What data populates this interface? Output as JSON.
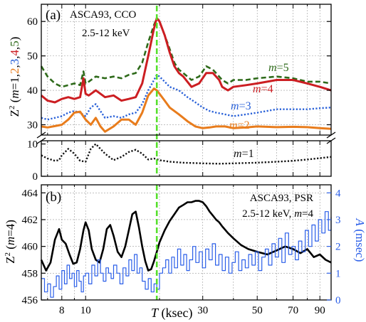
{
  "chart_data": [
    {
      "panel": "a",
      "type": "line",
      "panel_label": "(a)",
      "title": "ASCA93, CCO",
      "subtitle": "2.5-12 keV",
      "x_scale": "log",
      "xlim": [
        6.6,
        100
      ],
      "x_ticks": [
        8,
        10,
        30,
        50,
        70,
        90
      ],
      "y_upper_range": [
        27,
        65
      ],
      "y_upper_ticks": [
        30,
        40,
        50,
        60
      ],
      "y_lower_range": [
        0,
        11
      ],
      "y_lower_ticks": [
        0,
        10
      ],
      "ylabel": {
        "prefix": "Z",
        "sup": "2",
        "open": " (",
        "m_text": "m",
        "equals": "=",
        "parts": [
          "1",
          ",",
          "2",
          ",",
          "3",
          ",",
          "4",
          ",",
          "5"
        ],
        "close": ")"
      },
      "vline_x": 19.5,
      "series": [
        {
          "name": "m=5",
          "color": "#2e6a1a",
          "style": "dashed",
          "x": [
            6.6,
            7.0,
            7.5,
            8.0,
            8.5,
            9.0,
            9.5,
            9.8,
            10.0,
            10.3,
            11.0,
            12.0,
            13.0,
            14.0,
            15.0,
            16.0,
            17.0,
            18.0,
            19.0,
            19.5,
            20.0,
            21.0,
            22.0,
            23.0,
            24.0,
            25.0,
            27.0,
            29.0,
            31.0,
            33.0,
            35.0,
            36.0,
            38.0,
            40.0,
            45.0,
            50.0,
            60.0,
            70.0,
            80.0,
            90.0,
            100.0
          ],
          "y": [
            47,
            44,
            42,
            41,
            41.5,
            42,
            41.5,
            45.5,
            42,
            42.5,
            44,
            43.5,
            44,
            43.5,
            44.5,
            45,
            48,
            54,
            59,
            61,
            60,
            56,
            52,
            48,
            46,
            45,
            43,
            44,
            47,
            46,
            44,
            43,
            42,
            43,
            43,
            43.5,
            44,
            43.5,
            42.5,
            42.5,
            42
          ]
        },
        {
          "name": "m=4",
          "color": "#cc1e22",
          "style": "solid",
          "x": [
            6.6,
            7.0,
            7.5,
            8.0,
            8.5,
            9.0,
            9.5,
            9.8,
            10.0,
            10.3,
            11.0,
            12.0,
            13.0,
            14.0,
            15.0,
            16.0,
            17.0,
            18.0,
            19.0,
            19.5,
            20.0,
            21.0,
            22.0,
            23.0,
            24.0,
            25.0,
            27.0,
            29.0,
            31.0,
            33.0,
            35.0,
            36.0,
            38.0,
            40.0,
            45.0,
            50.0,
            60.0,
            70.0,
            80.0,
            90.0,
            100.0
          ],
          "y": [
            38.5,
            37,
            36.5,
            37.5,
            38,
            37.5,
            38,
            43.5,
            39,
            38.5,
            40,
            38,
            38.5,
            37,
            37.5,
            38,
            42,
            50,
            58,
            61,
            60,
            56,
            51,
            47,
            45,
            44,
            41,
            42,
            45,
            45,
            43,
            41,
            40,
            41,
            41.5,
            42,
            43,
            43,
            42,
            41,
            40
          ]
        },
        {
          "name": "m=3",
          "color": "#2860d8",
          "style": "dotted",
          "x": [
            6.6,
            7.0,
            7.5,
            8.0,
            8.5,
            9.0,
            9.5,
            10.0,
            10.5,
            11.0,
            12.0,
            13.0,
            14.0,
            15.0,
            16.0,
            17.0,
            18.0,
            19.0,
            19.5,
            20.0,
            21.0,
            22.0,
            24.0,
            26.0,
            28.0,
            30.0,
            32.0,
            34.0,
            37.0,
            40.0,
            45.0,
            50.0,
            60.0,
            70.0,
            80.0,
            90.0,
            100.0
          ],
          "y": [
            32,
            31.5,
            32,
            32.5,
            33.5,
            34,
            33.5,
            32.5,
            35,
            36,
            32,
            32.5,
            32,
            33,
            33.5,
            36,
            40,
            43,
            44.5,
            44,
            42.5,
            41,
            40,
            38,
            36.5,
            35,
            34,
            33.5,
            33,
            32.5,
            33,
            33.5,
            34.5,
            34.5,
            34.5,
            34.8,
            35
          ]
        },
        {
          "name": "m=2",
          "color": "#e87c1c",
          "style": "solid",
          "x": [
            6.6,
            7.0,
            7.5,
            8.0,
            8.5,
            9.0,
            9.5,
            10.0,
            10.5,
            11.0,
            11.5,
            12.0,
            13.0,
            14.0,
            15.0,
            16.0,
            17.0,
            18.0,
            19.0,
            19.5,
            20.0,
            21.0,
            22.0,
            24.0,
            26.0,
            28.0,
            30.0,
            32.0,
            34.0,
            37.0,
            40.0,
            45.0,
            50.0,
            60.0,
            70.0,
            80.0,
            90.0,
            100.0
          ],
          "y": [
            29.5,
            29.2,
            29.6,
            30,
            31.5,
            33.5,
            33.8,
            31.5,
            30,
            32,
            29.5,
            28,
            29.5,
            31.5,
            31.5,
            30,
            33.5,
            38.5,
            40.5,
            40,
            39,
            37,
            35,
            33,
            31,
            29.5,
            29,
            29.2,
            29.5,
            29.5,
            29,
            29.2,
            29.5,
            29.3,
            29.4,
            29.3,
            29,
            28.8
          ]
        },
        {
          "name": "m=1",
          "color": "#111111",
          "style": "dotted",
          "x": [
            6.6,
            7.0,
            7.5,
            7.8,
            8.0,
            8.5,
            9.0,
            9.5,
            10.0,
            10.5,
            11.0,
            12.0,
            13.0,
            14.0,
            15.0,
            16.0,
            17.0,
            18.0,
            19.0,
            20.0,
            22.0,
            25.0,
            30.0,
            35.0,
            40.0,
            50.0,
            60.0,
            70.0,
            80.0,
            90.0,
            100.0
          ],
          "y": [
            6.5,
            5.5,
            4.8,
            5,
            6.5,
            8.5,
            7,
            4.8,
            4.5,
            8.5,
            10,
            7,
            5,
            6,
            7.5,
            8.2,
            7,
            5.2,
            5.5,
            5,
            4.5,
            4.2,
            4,
            3.9,
            4,
            4.2,
            4.5,
            4.8,
            5.2,
            5.6,
            6
          ]
        }
      ],
      "series_labels": [
        {
          "prefix": "m",
          "eq": "=",
          "num": "5",
          "color": "#2e6a1a"
        },
        {
          "prefix": "m",
          "eq": "=",
          "num": "4",
          "color": "#cc1e22"
        },
        {
          "prefix": "m",
          "eq": "=",
          "num": "3",
          "color": "#2860d8"
        },
        {
          "prefix": "m",
          "eq": "=",
          "num": "2",
          "color": "#e87c1c"
        },
        {
          "prefix": "m",
          "eq": "=",
          "num": "1",
          "color": "#111111"
        }
      ]
    },
    {
      "panel": "b",
      "type": "line",
      "panel_label": "(b)",
      "title": "ASCA93, PSR",
      "subtitle": {
        "text": "2.5-12 keV, ",
        "m_text": "m",
        "rest": "=4"
      },
      "x_scale": "log",
      "xlim": [
        6.6,
        100
      ],
      "x_ticks": [
        8,
        10,
        30,
        50,
        70,
        90
      ],
      "x_tick_labels": [
        "8",
        "10",
        "30",
        "50",
        "70",
        "90"
      ],
      "xlabel": {
        "var": "T",
        "unit": " (ksec)"
      },
      "ylim_left": [
        456,
        464.6
      ],
      "y_ticks_left": [
        456,
        458,
        460,
        462,
        464
      ],
      "ylabel_left": {
        "prefix": "Z",
        "sup": "2",
        "open": " (",
        "m_text": "m",
        "rest": "=4)"
      },
      "ylim_right": [
        0,
        4.3
      ],
      "y_ticks_right": [
        0,
        1,
        2,
        3,
        4
      ],
      "ylabel_right": {
        "var": "A",
        "unit": " (msec)"
      },
      "vline_x": 19.5,
      "series": [
        {
          "name": "Z2",
          "color": "#000000",
          "axis": "left",
          "x": [
            6.6,
            6.9,
            7.2,
            7.5,
            7.8,
            8.0,
            8.3,
            8.6,
            8.9,
            9.2,
            9.5,
            9.8,
            10.0,
            10.3,
            10.6,
            11.0,
            11.4,
            11.8,
            12.2,
            12.6,
            13.0,
            13.5,
            14.0,
            14.5,
            15.0,
            15.5,
            16.0,
            16.5,
            17.0,
            17.5,
            18.0,
            18.5,
            19.0,
            19.5,
            20.0,
            21.0,
            22.0,
            23.0,
            24.0,
            25.0,
            26.0,
            27.0,
            28.0,
            29.0,
            30.0,
            31.0,
            32.0,
            33.0,
            34.0,
            35.0,
            36.0,
            38.0,
            40.0,
            43.0,
            46.0,
            50.0,
            55.0,
            60.0,
            65.0,
            70.0,
            75.0,
            80.0,
            85.0,
            90.0,
            95.0,
            100.0
          ],
          "y": [
            459.0,
            458.2,
            458.8,
            460.5,
            461.3,
            460.5,
            460.2,
            459.4,
            458.7,
            458.8,
            459.8,
            461.2,
            461.8,
            461.2,
            459.8,
            459.0,
            458.8,
            459.8,
            461.3,
            461.6,
            460.8,
            459.6,
            459.2,
            460.0,
            461.2,
            462.4,
            462.6,
            461.4,
            460.0,
            458.9,
            458.2,
            458.3,
            458.9,
            459.6,
            460.3,
            461.2,
            461.9,
            462.4,
            462.9,
            463.1,
            463.3,
            463.3,
            463.4,
            463.4,
            463.3,
            463.0,
            462.6,
            462.3,
            462.0,
            461.8,
            461.5,
            461.0,
            460.6,
            460.1,
            459.8,
            459.6,
            459.4,
            459.7,
            460.0,
            459.8,
            459.5,
            459.8,
            459.2,
            459.4,
            459.0,
            458.8
          ]
        },
        {
          "name": "A",
          "color": "#2a5ee8",
          "axis": "right",
          "x": [
            6.6,
            6.8,
            7.0,
            7.2,
            7.4,
            7.6,
            7.8,
            8.0,
            8.2,
            8.4,
            8.6,
            8.8,
            9.0,
            9.2,
            9.4,
            9.6,
            9.8,
            10.0,
            10.3,
            10.6,
            10.9,
            11.2,
            11.5,
            11.8,
            12.1,
            12.4,
            12.7,
            13.0,
            13.4,
            13.8,
            14.2,
            14.6,
            15.0,
            15.4,
            15.8,
            16.2,
            16.6,
            17.0,
            17.5,
            18.0,
            18.5,
            19.0,
            19.5,
            20.0,
            20.6,
            21.2,
            21.8,
            22.4,
            23.0,
            23.7,
            24.4,
            25.1,
            25.8,
            26.5,
            27.3,
            28.1,
            29.0,
            29.9,
            30.8,
            31.8,
            32.8,
            33.8,
            34.9,
            36.0,
            37.1,
            38.3,
            39.5,
            40.7,
            42.0,
            43.3,
            44.7,
            46.1,
            47.6,
            49.1,
            50.6,
            52.2,
            53.9,
            55.6,
            57.4,
            59.2,
            61.1,
            63.0,
            65.0,
            67.1,
            69.2,
            71.4,
            73.7,
            76.0,
            78.4,
            80.9,
            83.5,
            86.1,
            88.8,
            91.6,
            94.5,
            97.5,
            100.0
          ],
          "y": [
            0.8,
            0.3,
            0.6,
            0.1,
            0.5,
            0.9,
            0.4,
            1.1,
            0.6,
            1.3,
            0.8,
            1.0,
            0.5,
            1.1,
            0.7,
            0.3,
            0.9,
            1.0,
            0.6,
            1.3,
            0.9,
            1.5,
            1.0,
            0.7,
            1.2,
            1.0,
            0.8,
            1.3,
            1.0,
            0.6,
            1.2,
            0.9,
            1.5,
            1.1,
            1.7,
            1.0,
            1.2,
            0.7,
            0.4,
            0.8,
            0.3,
            0.6,
            0.4,
            1.0,
            1.2,
            1.5,
            1.0,
            1.6,
            1.2,
            1.9,
            1.3,
            1.7,
            1.1,
            1.5,
            2.0,
            1.4,
            1.8,
            1.2,
            1.9,
            1.5,
            2.1,
            1.3,
            1.7,
            1.1,
            1.6,
            1.0,
            1.4,
            1.8,
            1.1,
            1.5,
            1.2,
            1.7,
            1.3,
            1.8,
            1.1,
            1.6,
            1.9,
            1.3,
            2.1,
            1.6,
            2.3,
            1.4,
            2.5,
            1.7,
            2.0,
            1.5,
            2.2,
            1.8,
            2.6,
            2.0,
            2.8,
            2.2,
            3.0,
            2.5,
            3.3,
            2.6,
            3.1
          ]
        }
      ]
    }
  ]
}
